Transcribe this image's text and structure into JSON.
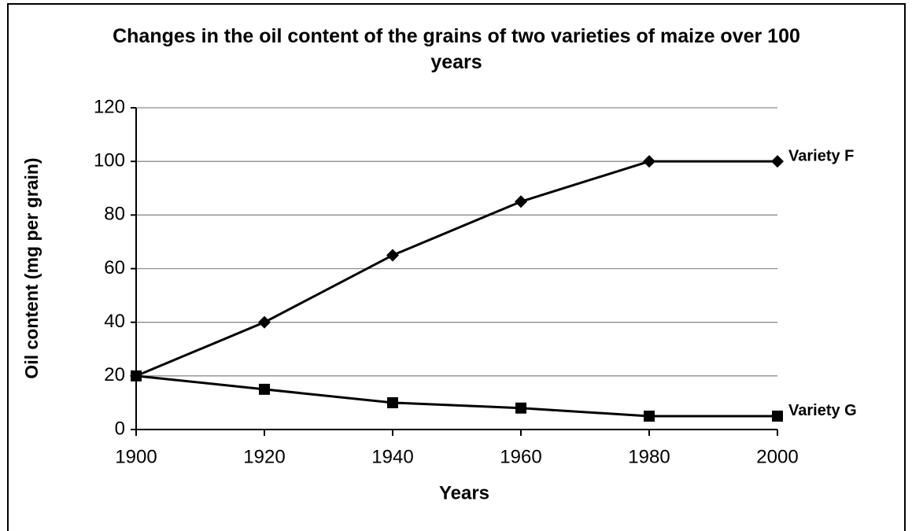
{
  "chart_data": {
    "type": "line",
    "title": "Changes in the oil content of the grains of two varieties of maize over 100 years",
    "x_label": "Years",
    "y_label": "Oil content (mg per grain)",
    "x": [
      1900,
      1920,
      1940,
      1960,
      1980,
      2000
    ],
    "series": [
      {
        "name": "Variety F",
        "color": "#000000",
        "marker": "diamond",
        "values": [
          20,
          40,
          65,
          85,
          100,
          100
        ]
      },
      {
        "name": "Variety G",
        "color": "#000000",
        "marker": "square",
        "values": [
          20,
          15,
          10,
          8,
          5,
          5
        ]
      }
    ],
    "xlim": [
      1900,
      2000
    ],
    "xticks": [
      1900,
      1920,
      1940,
      1960,
      1980,
      2000
    ],
    "ylim": [
      0,
      120
    ],
    "yticks": [
      0,
      20,
      40,
      60,
      80,
      100,
      120
    ],
    "grid": true
  }
}
